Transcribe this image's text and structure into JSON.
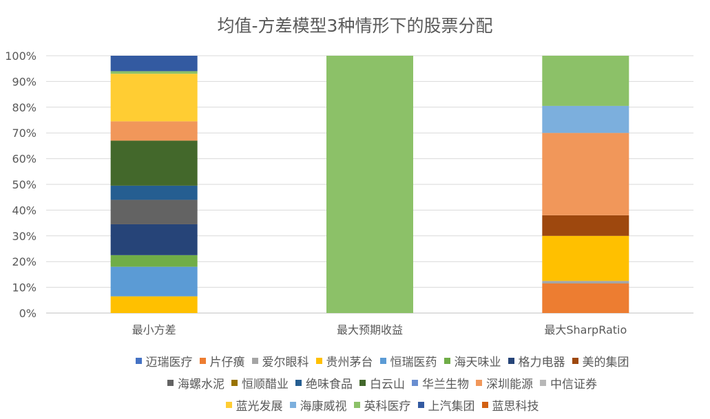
{
  "chart_data": {
    "type": "bar",
    "stacked": "percent",
    "title": "均值-方差模型3种情形下的股票分配",
    "categories": [
      "最小方差",
      "最大预期收益",
      "最大SharpRatio"
    ],
    "y_ticks": [
      "0%",
      "10%",
      "20%",
      "30%",
      "40%",
      "50%",
      "60%",
      "70%",
      "80%",
      "90%",
      "100%"
    ],
    "ylim": [
      0,
      100
    ],
    "grid": true,
    "legend_position": "bottom",
    "series": [
      {
        "name": "迈瑞医疗",
        "color": "#4472C4",
        "values": [
          0,
          0,
          0
        ]
      },
      {
        "name": "片仔癀",
        "color": "#ED7D31",
        "values": [
          0,
          0,
          11.5
        ]
      },
      {
        "name": "爱尔眼科",
        "color": "#A5A5A5",
        "values": [
          0,
          0,
          1
        ]
      },
      {
        "name": "贵州茅台",
        "color": "#FFC000",
        "values": [
          6.5,
          0,
          17.5
        ]
      },
      {
        "name": "恒瑞医药",
        "color": "#5B9BD5",
        "values": [
          11.5,
          0,
          0
        ]
      },
      {
        "name": "海天味业",
        "color": "#70AD47",
        "values": [
          4.5,
          0,
          0
        ]
      },
      {
        "name": "格力电器",
        "color": "#264478",
        "values": [
          12,
          0,
          0
        ]
      },
      {
        "name": "美的集团",
        "color": "#9E480E",
        "values": [
          0,
          0,
          8
        ]
      },
      {
        "name": "海螺水泥",
        "color": "#636363",
        "values": [
          9.5,
          0,
          0
        ]
      },
      {
        "name": "恒顺醋业",
        "color": "#997300",
        "values": [
          0,
          0,
          0
        ]
      },
      {
        "name": "绝味食品",
        "color": "#255E91",
        "values": [
          5.5,
          0,
          0
        ]
      },
      {
        "name": "白云山",
        "color": "#43682B",
        "values": [
          17.5,
          0,
          0
        ]
      },
      {
        "name": "华兰生物",
        "color": "#698ED0",
        "values": [
          0,
          0,
          0
        ]
      },
      {
        "name": "深圳能源",
        "color": "#F1975A",
        "values": [
          7.5,
          0,
          32
        ]
      },
      {
        "name": "中信证券",
        "color": "#B7B7B7",
        "values": [
          0,
          0,
          0
        ]
      },
      {
        "name": "蓝光发展",
        "color": "#FFCD33",
        "values": [
          18.5,
          0,
          0
        ]
      },
      {
        "name": "海康威视",
        "color": "#7CAFDD",
        "values": [
          0,
          0,
          10.5
        ]
      },
      {
        "name": "英科医疗",
        "color": "#8CC168",
        "values": [
          1,
          100,
          19.5
        ]
      },
      {
        "name": "上汽集团",
        "color": "#335AA1",
        "values": [
          6,
          0,
          0
        ]
      },
      {
        "name": "蓝思科技",
        "color": "#D26012",
        "values": [
          0,
          0,
          0
        ]
      }
    ]
  }
}
